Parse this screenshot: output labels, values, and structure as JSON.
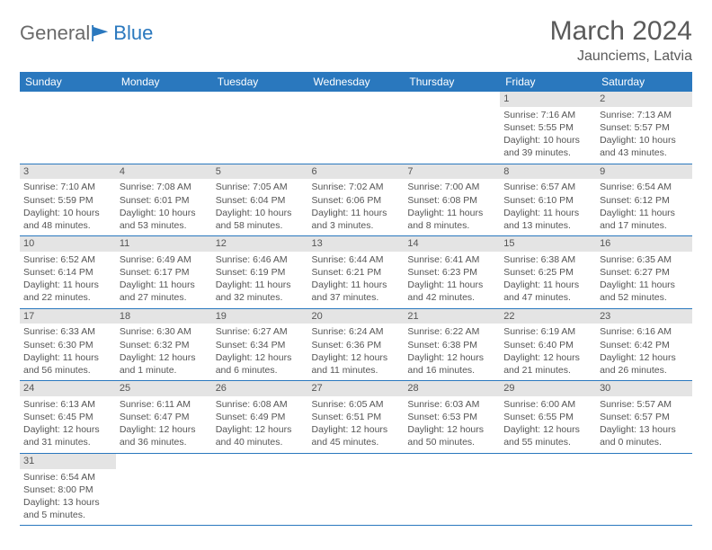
{
  "logo": {
    "part1": "General",
    "part2": "Blue"
  },
  "title": "March 2024",
  "location": "Jaunciems, Latvia",
  "colors": {
    "header_bg": "#2a78be",
    "header_text": "#ffffff",
    "daynum_bg": "#e4e4e4",
    "border": "#2a78be",
    "text": "#555555"
  },
  "weekdays": [
    "Sunday",
    "Monday",
    "Tuesday",
    "Wednesday",
    "Thursday",
    "Friday",
    "Saturday"
  ],
  "grid": [
    [
      null,
      null,
      null,
      null,
      null,
      {
        "day": "1",
        "sunrise": "Sunrise: 7:16 AM",
        "sunset": "Sunset: 5:55 PM",
        "daylight1": "Daylight: 10 hours",
        "daylight2": "and 39 minutes."
      },
      {
        "day": "2",
        "sunrise": "Sunrise: 7:13 AM",
        "sunset": "Sunset: 5:57 PM",
        "daylight1": "Daylight: 10 hours",
        "daylight2": "and 43 minutes."
      }
    ],
    [
      {
        "day": "3",
        "sunrise": "Sunrise: 7:10 AM",
        "sunset": "Sunset: 5:59 PM",
        "daylight1": "Daylight: 10 hours",
        "daylight2": "and 48 minutes."
      },
      {
        "day": "4",
        "sunrise": "Sunrise: 7:08 AM",
        "sunset": "Sunset: 6:01 PM",
        "daylight1": "Daylight: 10 hours",
        "daylight2": "and 53 minutes."
      },
      {
        "day": "5",
        "sunrise": "Sunrise: 7:05 AM",
        "sunset": "Sunset: 6:04 PM",
        "daylight1": "Daylight: 10 hours",
        "daylight2": "and 58 minutes."
      },
      {
        "day": "6",
        "sunrise": "Sunrise: 7:02 AM",
        "sunset": "Sunset: 6:06 PM",
        "daylight1": "Daylight: 11 hours",
        "daylight2": "and 3 minutes."
      },
      {
        "day": "7",
        "sunrise": "Sunrise: 7:00 AM",
        "sunset": "Sunset: 6:08 PM",
        "daylight1": "Daylight: 11 hours",
        "daylight2": "and 8 minutes."
      },
      {
        "day": "8",
        "sunrise": "Sunrise: 6:57 AM",
        "sunset": "Sunset: 6:10 PM",
        "daylight1": "Daylight: 11 hours",
        "daylight2": "and 13 minutes."
      },
      {
        "day": "9",
        "sunrise": "Sunrise: 6:54 AM",
        "sunset": "Sunset: 6:12 PM",
        "daylight1": "Daylight: 11 hours",
        "daylight2": "and 17 minutes."
      }
    ],
    [
      {
        "day": "10",
        "sunrise": "Sunrise: 6:52 AM",
        "sunset": "Sunset: 6:14 PM",
        "daylight1": "Daylight: 11 hours",
        "daylight2": "and 22 minutes."
      },
      {
        "day": "11",
        "sunrise": "Sunrise: 6:49 AM",
        "sunset": "Sunset: 6:17 PM",
        "daylight1": "Daylight: 11 hours",
        "daylight2": "and 27 minutes."
      },
      {
        "day": "12",
        "sunrise": "Sunrise: 6:46 AM",
        "sunset": "Sunset: 6:19 PM",
        "daylight1": "Daylight: 11 hours",
        "daylight2": "and 32 minutes."
      },
      {
        "day": "13",
        "sunrise": "Sunrise: 6:44 AM",
        "sunset": "Sunset: 6:21 PM",
        "daylight1": "Daylight: 11 hours",
        "daylight2": "and 37 minutes."
      },
      {
        "day": "14",
        "sunrise": "Sunrise: 6:41 AM",
        "sunset": "Sunset: 6:23 PM",
        "daylight1": "Daylight: 11 hours",
        "daylight2": "and 42 minutes."
      },
      {
        "day": "15",
        "sunrise": "Sunrise: 6:38 AM",
        "sunset": "Sunset: 6:25 PM",
        "daylight1": "Daylight: 11 hours",
        "daylight2": "and 47 minutes."
      },
      {
        "day": "16",
        "sunrise": "Sunrise: 6:35 AM",
        "sunset": "Sunset: 6:27 PM",
        "daylight1": "Daylight: 11 hours",
        "daylight2": "and 52 minutes."
      }
    ],
    [
      {
        "day": "17",
        "sunrise": "Sunrise: 6:33 AM",
        "sunset": "Sunset: 6:30 PM",
        "daylight1": "Daylight: 11 hours",
        "daylight2": "and 56 minutes."
      },
      {
        "day": "18",
        "sunrise": "Sunrise: 6:30 AM",
        "sunset": "Sunset: 6:32 PM",
        "daylight1": "Daylight: 12 hours",
        "daylight2": "and 1 minute."
      },
      {
        "day": "19",
        "sunrise": "Sunrise: 6:27 AM",
        "sunset": "Sunset: 6:34 PM",
        "daylight1": "Daylight: 12 hours",
        "daylight2": "and 6 minutes."
      },
      {
        "day": "20",
        "sunrise": "Sunrise: 6:24 AM",
        "sunset": "Sunset: 6:36 PM",
        "daylight1": "Daylight: 12 hours",
        "daylight2": "and 11 minutes."
      },
      {
        "day": "21",
        "sunrise": "Sunrise: 6:22 AM",
        "sunset": "Sunset: 6:38 PM",
        "daylight1": "Daylight: 12 hours",
        "daylight2": "and 16 minutes."
      },
      {
        "day": "22",
        "sunrise": "Sunrise: 6:19 AM",
        "sunset": "Sunset: 6:40 PM",
        "daylight1": "Daylight: 12 hours",
        "daylight2": "and 21 minutes."
      },
      {
        "day": "23",
        "sunrise": "Sunrise: 6:16 AM",
        "sunset": "Sunset: 6:42 PM",
        "daylight1": "Daylight: 12 hours",
        "daylight2": "and 26 minutes."
      }
    ],
    [
      {
        "day": "24",
        "sunrise": "Sunrise: 6:13 AM",
        "sunset": "Sunset: 6:45 PM",
        "daylight1": "Daylight: 12 hours",
        "daylight2": "and 31 minutes."
      },
      {
        "day": "25",
        "sunrise": "Sunrise: 6:11 AM",
        "sunset": "Sunset: 6:47 PM",
        "daylight1": "Daylight: 12 hours",
        "daylight2": "and 36 minutes."
      },
      {
        "day": "26",
        "sunrise": "Sunrise: 6:08 AM",
        "sunset": "Sunset: 6:49 PM",
        "daylight1": "Daylight: 12 hours",
        "daylight2": "and 40 minutes."
      },
      {
        "day": "27",
        "sunrise": "Sunrise: 6:05 AM",
        "sunset": "Sunset: 6:51 PM",
        "daylight1": "Daylight: 12 hours",
        "daylight2": "and 45 minutes."
      },
      {
        "day": "28",
        "sunrise": "Sunrise: 6:03 AM",
        "sunset": "Sunset: 6:53 PM",
        "daylight1": "Daylight: 12 hours",
        "daylight2": "and 50 minutes."
      },
      {
        "day": "29",
        "sunrise": "Sunrise: 6:00 AM",
        "sunset": "Sunset: 6:55 PM",
        "daylight1": "Daylight: 12 hours",
        "daylight2": "and 55 minutes."
      },
      {
        "day": "30",
        "sunrise": "Sunrise: 5:57 AM",
        "sunset": "Sunset: 6:57 PM",
        "daylight1": "Daylight: 13 hours",
        "daylight2": "and 0 minutes."
      }
    ],
    [
      {
        "day": "31",
        "sunrise": "Sunrise: 6:54 AM",
        "sunset": "Sunset: 8:00 PM",
        "daylight1": "Daylight: 13 hours",
        "daylight2": "and 5 minutes."
      },
      null,
      null,
      null,
      null,
      null,
      null
    ]
  ]
}
